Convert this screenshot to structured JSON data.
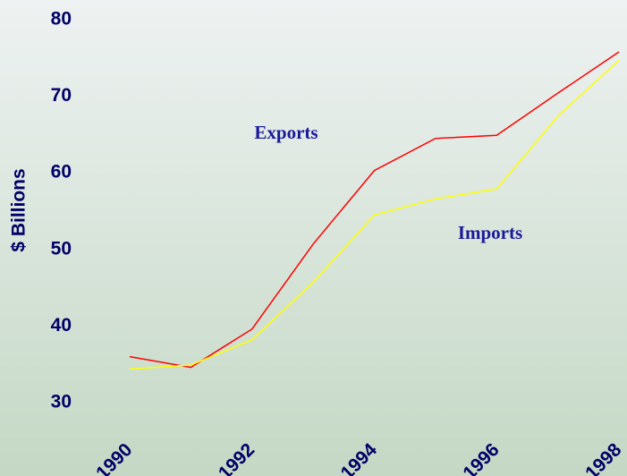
{
  "chart_data": {
    "type": "line",
    "y_label": "$ Billions",
    "x": [
      1990,
      1991,
      1992,
      1993,
      1994,
      1995,
      1996,
      1997,
      1998
    ],
    "xlim": [
      1990,
      1998
    ],
    "xticks": [
      1990,
      1992,
      1994,
      1996,
      1998
    ],
    "ylim": [
      30,
      80
    ],
    "yticks": [
      30,
      40,
      50,
      60,
      70,
      80
    ],
    "series": [
      {
        "name": "Exports",
        "color": "#ff0000",
        "values": [
          36.0,
          34.6,
          39.6,
          50.7,
          60.3,
          64.5,
          64.9,
          70.4,
          75.8
        ]
      },
      {
        "name": "Imports",
        "color": "#ffff00",
        "values": [
          34.4,
          34.9,
          38.2,
          45.7,
          54.5,
          56.6,
          57.9,
          67.4,
          74.7
        ]
      }
    ]
  }
}
